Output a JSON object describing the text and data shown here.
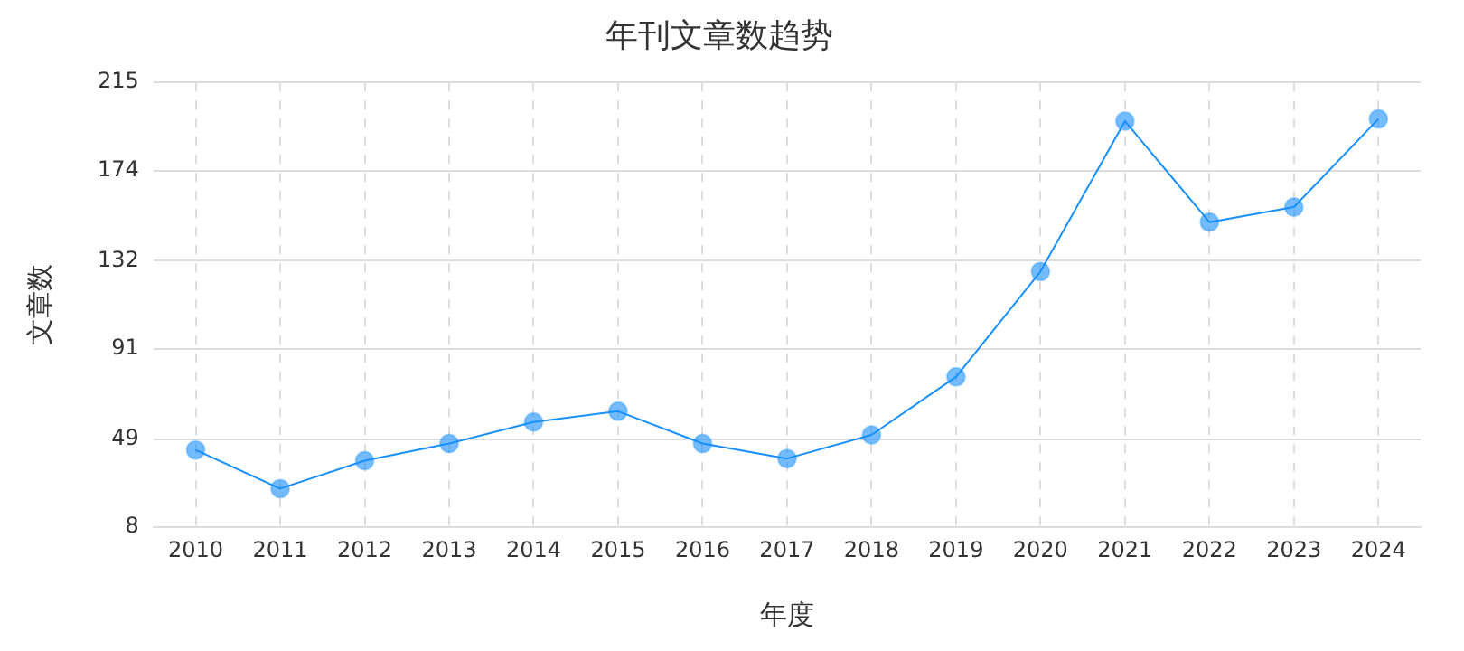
{
  "chart_data": {
    "type": "line",
    "title": "年刊文章数趋势",
    "xlabel": "年度",
    "ylabel": "文章数",
    "categories": [
      "2010",
      "2011",
      "2012",
      "2013",
      "2014",
      "2015",
      "2016",
      "2017",
      "2018",
      "2019",
      "2020",
      "2021",
      "2022",
      "2023",
      "2024"
    ],
    "series": [
      {
        "color": "#1890ff",
        "values": [
          44,
          26,
          39,
          47,
          57,
          62,
          47,
          40,
          51,
          78,
          127,
          197,
          150,
          157,
          198
        ]
      }
    ],
    "ylim": [
      8,
      215
    ],
    "yticks": [
      8,
      49,
      91,
      132,
      174,
      215
    ],
    "grid": true,
    "legend": false,
    "marker": "circle",
    "line_style": "solid"
  }
}
